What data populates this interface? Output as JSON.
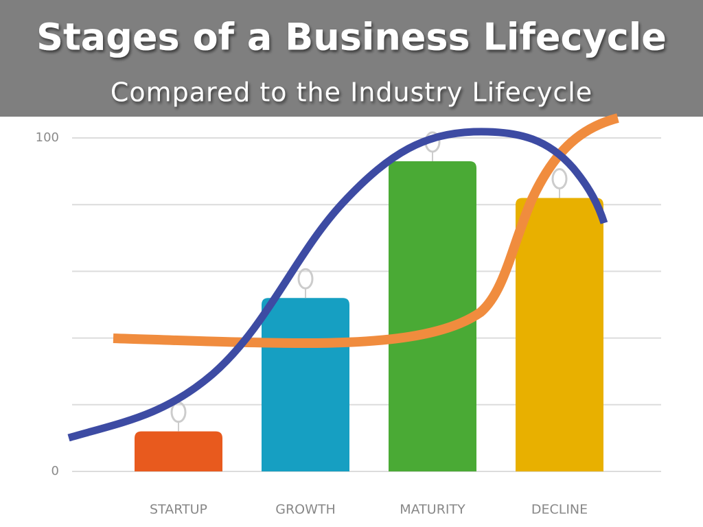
{
  "chart_data": {
    "type": "bar",
    "title": "Stages of a Business Lifecycle",
    "subtitle": "Compared to the Industry Lifecycle",
    "categories": [
      "STARTUP",
      "GROWTH",
      "MATURITY",
      "DECLINE"
    ],
    "values": [
      12,
      52,
      93,
      82
    ],
    "colors": [
      "#e85a1e",
      "#169fc2",
      "#4aaa35",
      "#e8b000"
    ],
    "ylim": [
      0,
      100
    ],
    "yticks": [
      0,
      100
    ],
    "ygrid": [
      0,
      20,
      40,
      60,
      80,
      100
    ],
    "grid": true
  }
}
